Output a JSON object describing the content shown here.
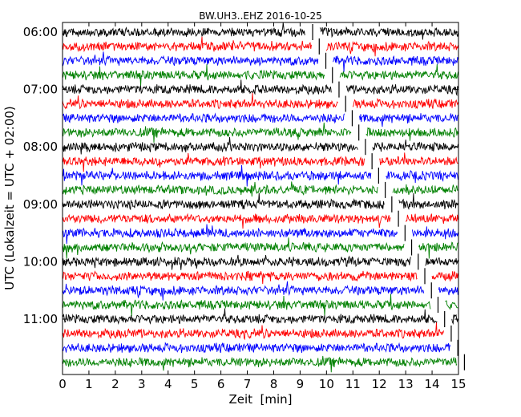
{
  "chart_data": {
    "type": "line",
    "title": "BW.UH3..EHZ 2016-10-25",
    "xlabel": "Zeit  [min]",
    "ylabel": "UTC (Lokalzeit = UTC + 02:00)",
    "xlim": [
      0,
      15
    ],
    "x_ticks": [
      "0",
      "1",
      "2",
      "3",
      "4",
      "5",
      "6",
      "7",
      "8",
      "9",
      "10",
      "11",
      "12",
      "13",
      "14",
      "15"
    ],
    "y_ticks": [
      "06:00",
      "07:00",
      "08:00",
      "09:00",
      "10:00",
      "11:00"
    ],
    "rows_start_utc": "06:00",
    "row_length_min": 15,
    "row_count": 24,
    "grid": false,
    "legend": "none",
    "series_colors": [
      "#000000",
      "#ff0000",
      "#0000ff",
      "#008000"
    ],
    "gap_line_color": "#000000",
    "gap_slope_min_per_row": 0.25,
    "gap_start_min": 9.2
  }
}
